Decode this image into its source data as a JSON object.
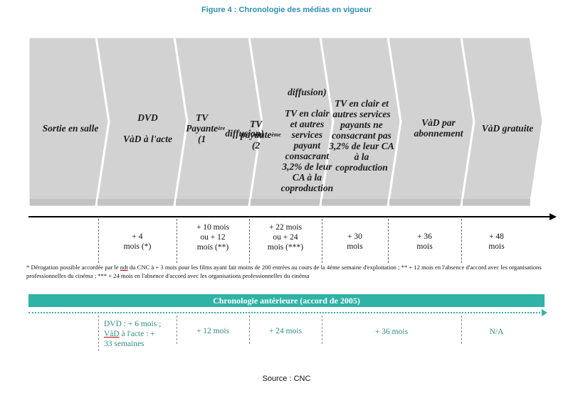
{
  "figure_title": "Figure 4 : Chronologie des médias en vigueur",
  "colors": {
    "chevron": "#d2d2d2",
    "chevron_shadow": "#b4b4b4",
    "teal": "#2eb3a6",
    "title": "#2e8fb8"
  },
  "chevrons": [
    {
      "label": "Sortie en salle"
    },
    {
      "label": "DVD\n\nVàD à l'acte"
    },
    {
      "label": "TV Payante (1ère diffusion)"
    },
    {
      "label": "TV payante (2ème diffusion)\n\nTV en clair et autres services payant consacrant 3,2% de leur CA à la coproduction"
    },
    {
      "label": "TV en clair et autres services payants ne consacrant pas 3,2% de leur CA à la coproduction"
    },
    {
      "label": "VàD par abonnement"
    },
    {
      "label": "VàD gratuite"
    }
  ],
  "delays": [
    "+ 4\nmois (*)",
    "+ 10 mois\nou + 12\nmois (**)",
    "+ 22 mois\nou + 24\nmois (***)",
    "+ 30\nmois",
    "+ 36\nmois",
    "+ 48\nmois"
  ],
  "footnote": {
    "before_ndt": "* Dérogation possible accordée par le ",
    "ndt": "ndt",
    "after_ndt": " du CNC à + 3 mois pour les films ayant fait moins de 200 entrées au cours de la 4ème semaine d'exploitation ; ** + 12 mois en l'absence d'accord avec les organisations professionnelles du cinéma ; *** + 24 mois en l'absence d'accord avec les organisations professionnelles du cinéma"
  },
  "prior": {
    "bar_label": "Chronologie antérieure (accord de 2005)",
    "dvd_line1": "DVD : + 6 mois ;",
    "dvd_vad": "VàD",
    "dvd_line2_rest": " à l'acte : +",
    "dvd_line3": "33 semaines",
    "tv_pay": "+ 12 mois",
    "tv_pay2": "+ 24 mois",
    "tv_clear": "+ 36 mois",
    "vod": "N/A"
  },
  "source": "Source : CNC"
}
